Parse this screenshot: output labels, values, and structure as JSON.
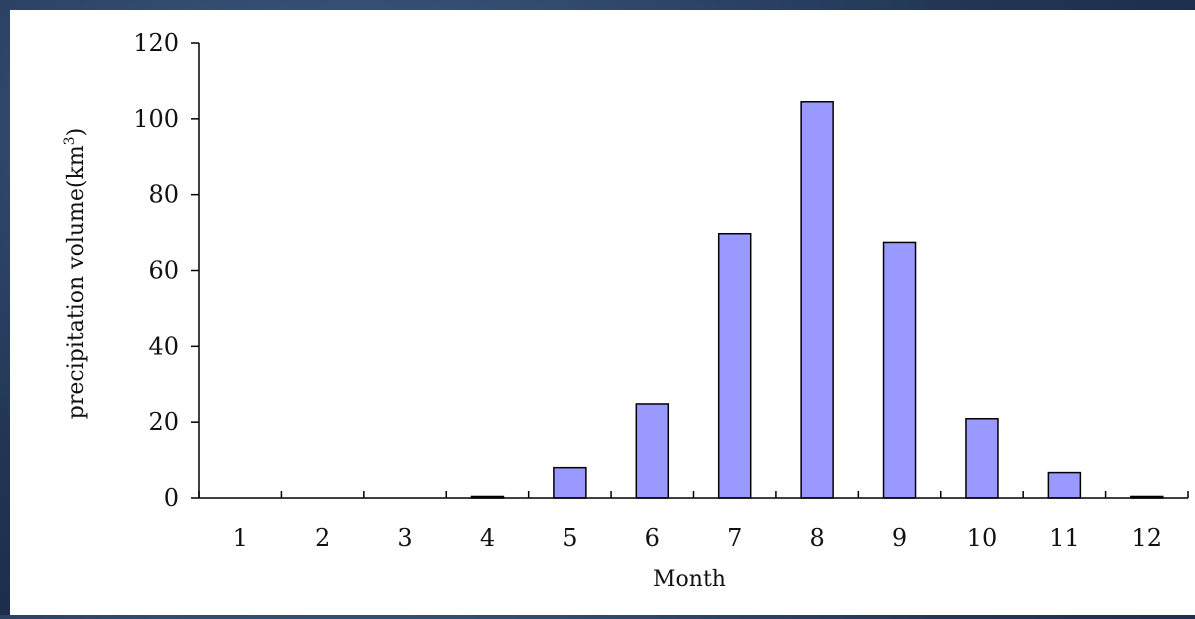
{
  "chart_data": {
    "type": "bar",
    "categories": [
      "1",
      "2",
      "3",
      "4",
      "5",
      "6",
      "7",
      "8",
      "9",
      "10",
      "11",
      "12"
    ],
    "values": [
      0,
      0,
      0,
      0.4,
      8,
      24.8,
      69.7,
      104.5,
      67.4,
      20.9,
      6.7,
      0.4
    ],
    "xlabel": "Month",
    "ylabel_text": "precipitation volume(km",
    "ylabel_superscript": "3",
    "ylabel_close": ")",
    "yticks": [
      "0",
      "20",
      "40",
      "60",
      "80",
      "100",
      "120"
    ],
    "ylim": [
      0,
      120
    ],
    "bar_color": "#9999ff",
    "grid": false,
    "legend": "none"
  }
}
